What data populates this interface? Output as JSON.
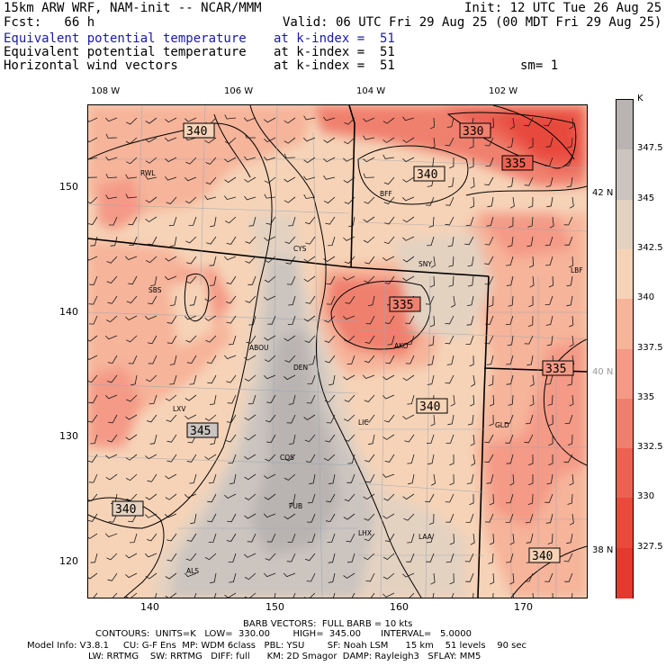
{
  "header": {
    "model_line": "15km ARW WRF, NAM-init -- NCAR/MMM",
    "init_line": "Init: 12 UTC Tue 26 Aug 25",
    "fcst_line": "Fcst:   66 h",
    "valid_line": "Valid: 06 UTC Fri 29 Aug 25 (00 MDT Fri 29 Aug 25)",
    "field1_name": "Equivalent potential temperature",
    "field1_level": "at k-index =  51",
    "field2_name": "Equivalent potential temperature",
    "field2_level": "at k-index =  51",
    "field3_name": "Horizontal wind vectors",
    "field3_level": "at k-index =  51",
    "smooth": "sm= 1"
  },
  "axes": {
    "lon_top": [
      "108 W",
      "106 W",
      "104 W",
      "102 W"
    ],
    "lat_right": [
      "42 N",
      "40 N",
      "38 N"
    ],
    "x_ticks": [
      "140",
      "150",
      "160",
      "170"
    ],
    "y_ticks": [
      "150",
      "140",
      "130",
      "120"
    ]
  },
  "contour_labels": [
    "340",
    "330",
    "340",
    "335",
    "335",
    "335",
    "340",
    "345",
    "340",
    "340"
  ],
  "stations": [
    "RWL",
    "BFF",
    "SNY",
    "CYS",
    "LBF",
    "SBS",
    "ABOU",
    "DEN",
    "AKO",
    "LXV",
    "LIC",
    "GLD",
    "COS",
    "PUB",
    "LHX",
    "LAA",
    "ALS"
  ],
  "colorbar": {
    "unit": "K",
    "labels": [
      "347.5",
      "345",
      "342.5",
      "340",
      "337.5",
      "335",
      "332.5",
      "330",
      "327.5"
    ],
    "colors": [
      "#b9b4b2",
      "#cbc4bf",
      "#e4d2c1",
      "#f6d3b7",
      "#f6b49a",
      "#f49a86",
      "#f0806e",
      "#ec6252",
      "#e84a3c",
      "#e23a2e"
    ]
  },
  "footer": {
    "line1": "BARB VECTORS:  FULL BARB = 10 kts",
    "line2": "CONTOURS:  UNITS=K   LOW=  330.00        HIGH=  345.00       INTERVAL=   5.0000",
    "line3": "Model Info: V3.8.1     CU: G-F Ens  MP: WDM 6class   PBL: YSU        SF: Noah LSM      15 km    51 levels    90 sec",
    "line4": "LW: RRTMG    SW: RRTMG   DIFF: full      KM: 2D Smagor  DAMP: Rayleigh3   SFLAY: MM5"
  }
}
